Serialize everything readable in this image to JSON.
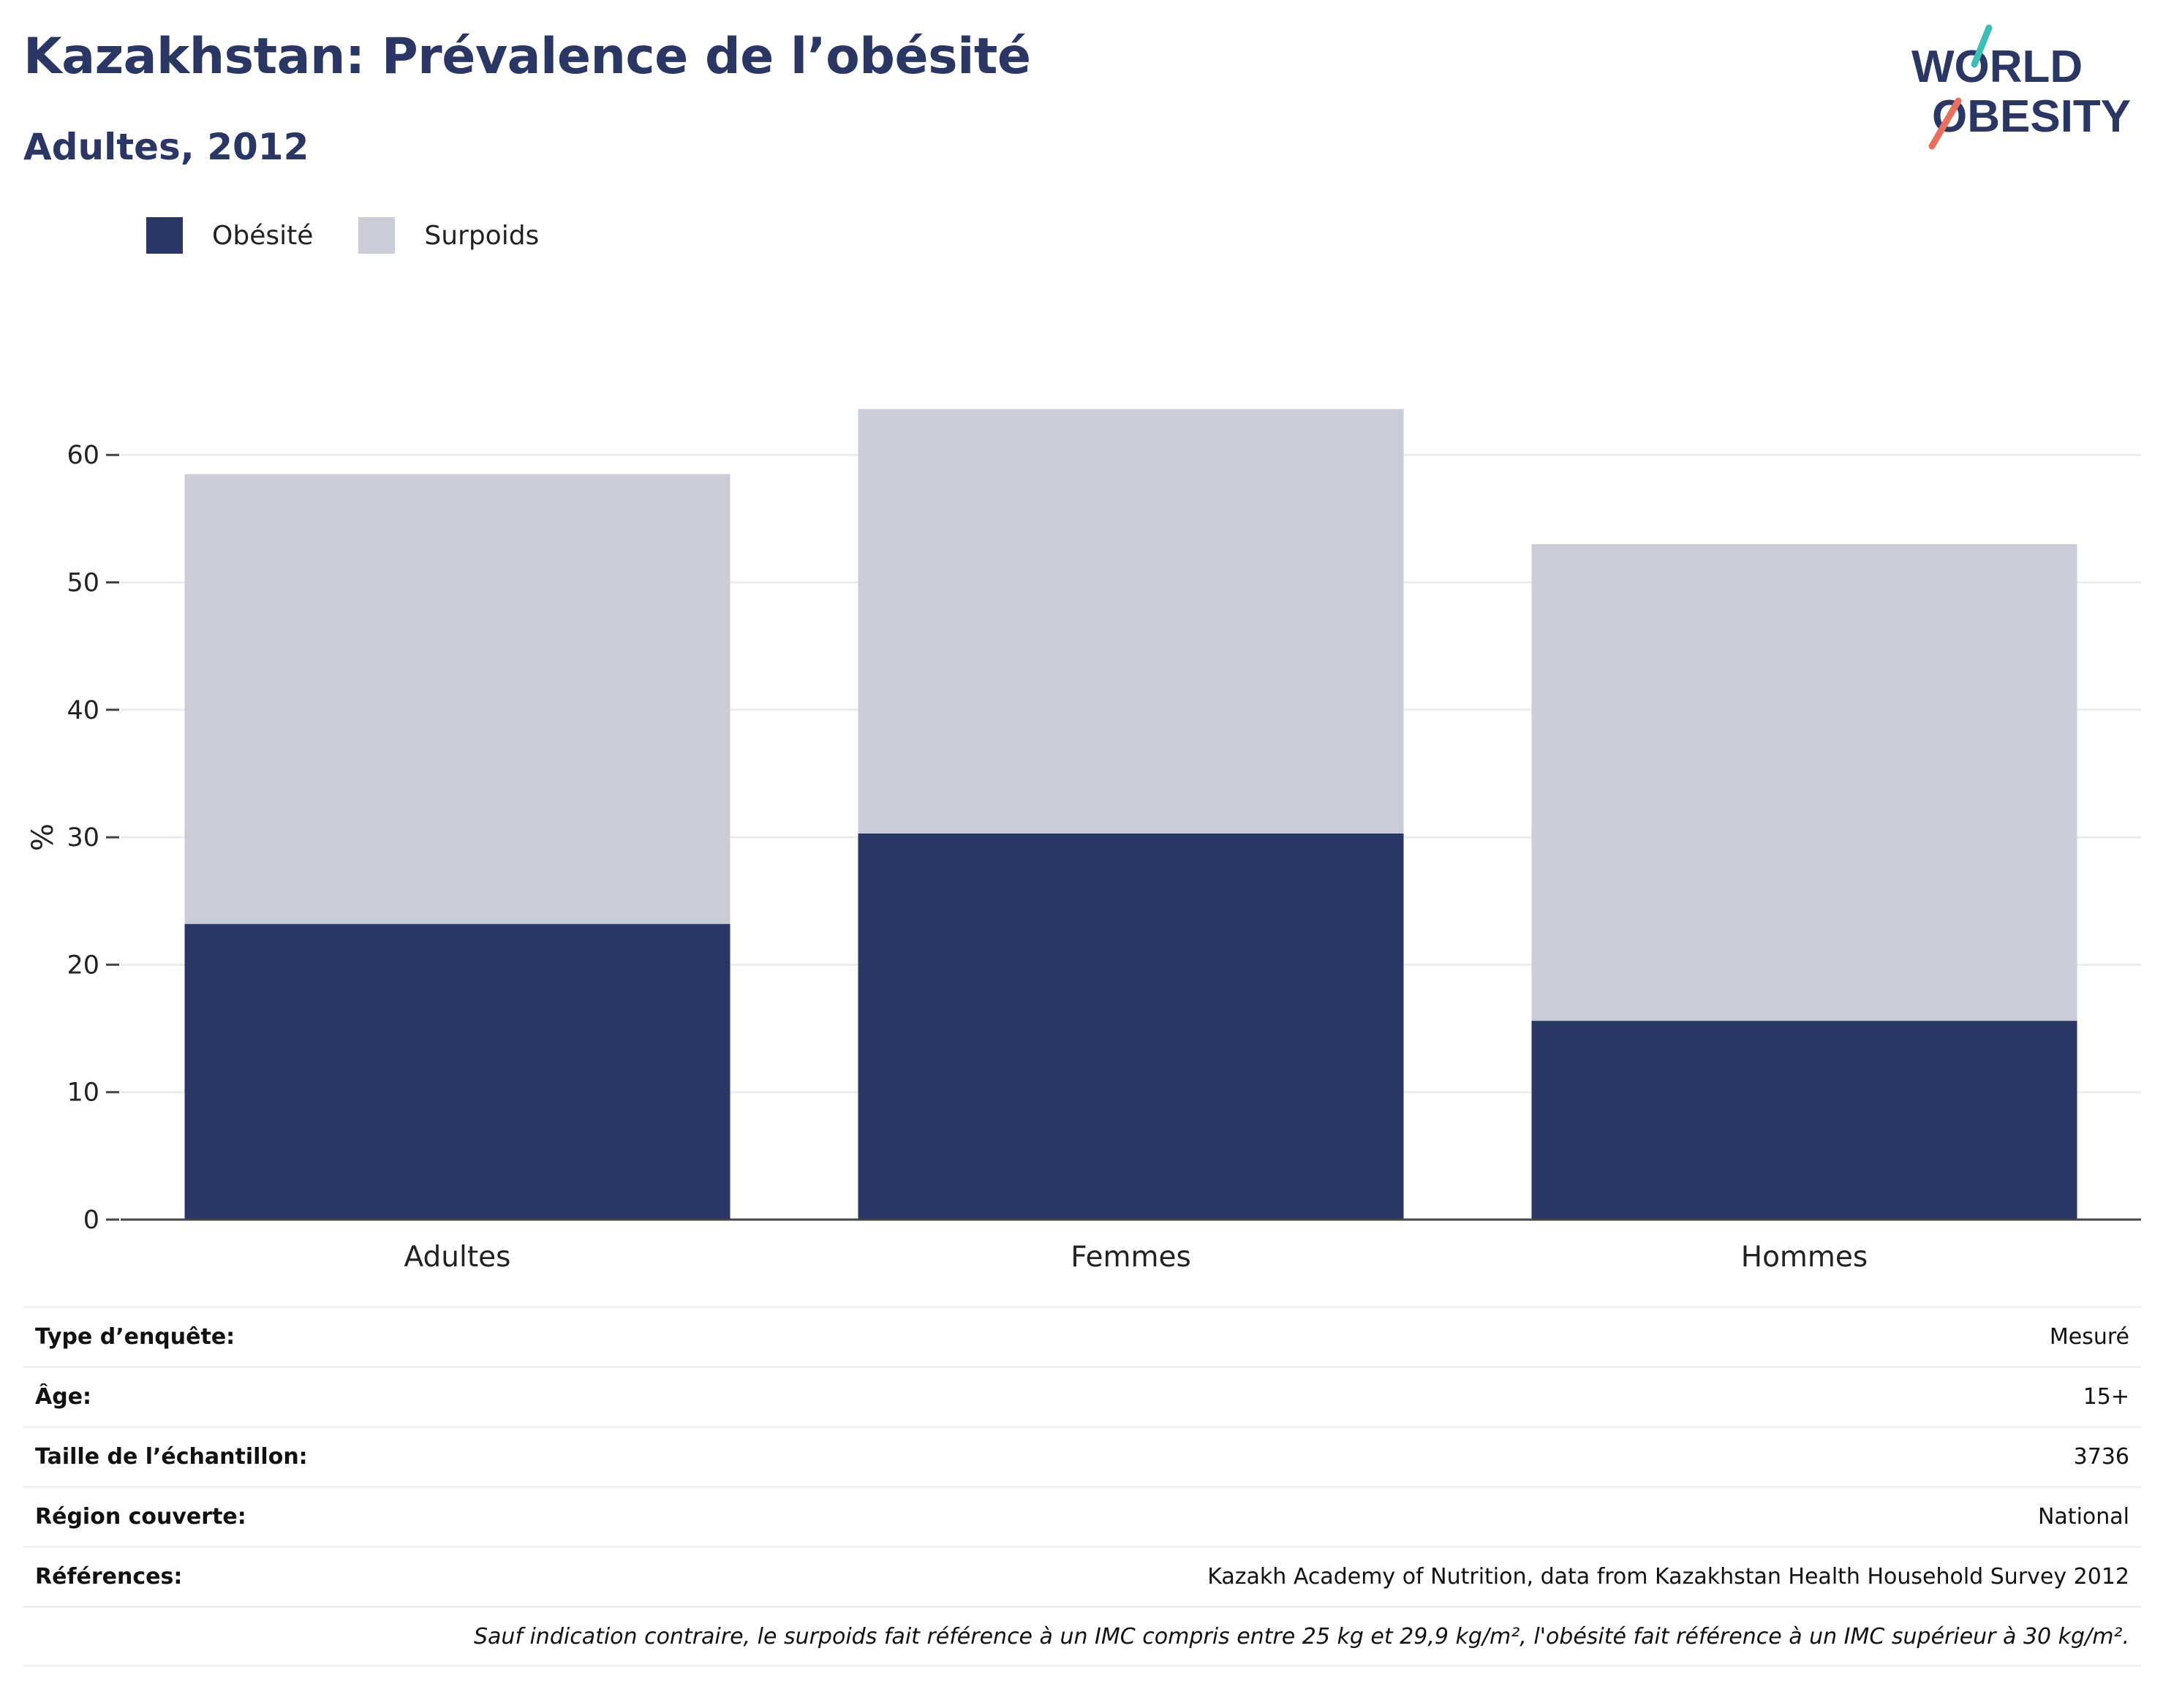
{
  "header": {
    "title": "Kazakhstan: Prévalence de l’obésité",
    "subtitle": "Adultes, 2012"
  },
  "logo": {
    "line1": "WORLD",
    "line2": "OBESITY",
    "icon": "world-obesity-logo"
  },
  "colors": {
    "obesity": "#2a3663",
    "overweight": "#cacdd8",
    "accent_teal": "#3dbfb8",
    "accent_coral": "#e8705f"
  },
  "legend": {
    "items": [
      {
        "label": "Obésité"
      },
      {
        "label": "Surpoids"
      }
    ]
  },
  "chart_data": {
    "type": "bar",
    "stacked": true,
    "categories": [
      "Adultes",
      "Femmes",
      "Hommes"
    ],
    "series": [
      {
        "name": "Obésité",
        "values": [
          23.2,
          30.3,
          15.6
        ]
      },
      {
        "name": "Surpoids",
        "values": [
          35.3,
          33.3,
          37.4
        ]
      }
    ],
    "ylabel": "%",
    "yticks": [
      0,
      10,
      20,
      30,
      40,
      50,
      60
    ],
    "ylim": [
      0,
      60
    ],
    "grid": true,
    "legend_position": "top-left"
  },
  "info": {
    "rows": [
      {
        "key": "Type d’enquête:",
        "value": "Mesuré"
      },
      {
        "key": "Âge:",
        "value": "15+"
      },
      {
        "key": "Taille de l’échantillon:",
        "value": "3736"
      },
      {
        "key": "Région couverte:",
        "value": "National"
      },
      {
        "key": "Références:",
        "value": "Kazakh Academy of Nutrition, data from Kazakhstan Health Household Survey 2012"
      }
    ],
    "note": "Sauf indication contraire, le surpoids fait référence à un IMC compris entre 25 kg et 29,9 kg/m², l'obésité fait référence à un IMC supérieur à 30 kg/m²."
  }
}
